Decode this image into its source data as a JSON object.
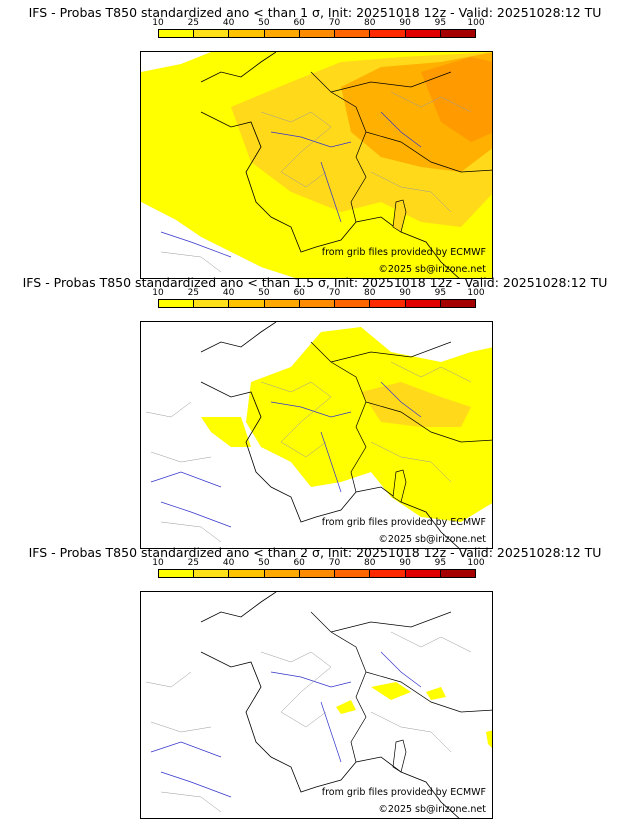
{
  "colorbar": {
    "ticks": [
      "10",
      "25",
      "40",
      "50",
      "60",
      "70",
      "80",
      "90",
      "95",
      "100"
    ],
    "colors": [
      "#ffff00",
      "#ffe11a",
      "#ffc300",
      "#ffa800",
      "#ff8c00",
      "#ff6600",
      "#ff2a00",
      "#e00000",
      "#a50000",
      "#6b0000"
    ]
  },
  "map_colors": {
    "land": "#ffffff",
    "low": "#ffff00",
    "mid": "#ffd91a",
    "high": "#ffa500",
    "border": "#000000",
    "river": "#3333cc",
    "dept": "#9a9a9a"
  },
  "panels": [
    {
      "title": "IFS - Probas T850  standardized ano < than 1 σ, Init: 20251018 12z - Valid: 20251028:12 TU",
      "source": "from grib files provided by ECMWF",
      "copyright": "©2025 sb@irizone.net"
    },
    {
      "title": "IFS - Probas T850  standardized ano < than 1.5 σ, Init: 20251018 12z - Valid: 20251028:12 TU",
      "source": "from grib files provided by ECMWF",
      "copyright": "©2025 sb@irizone.net"
    },
    {
      "title": "IFS - Probas T850  standardized ano < than 2 σ, Init: 20251018 12z - Valid: 20251028:12 TU",
      "source": "from grib files provided by ECMWF",
      "copyright": "©2025 sb@irizone.net"
    }
  ]
}
